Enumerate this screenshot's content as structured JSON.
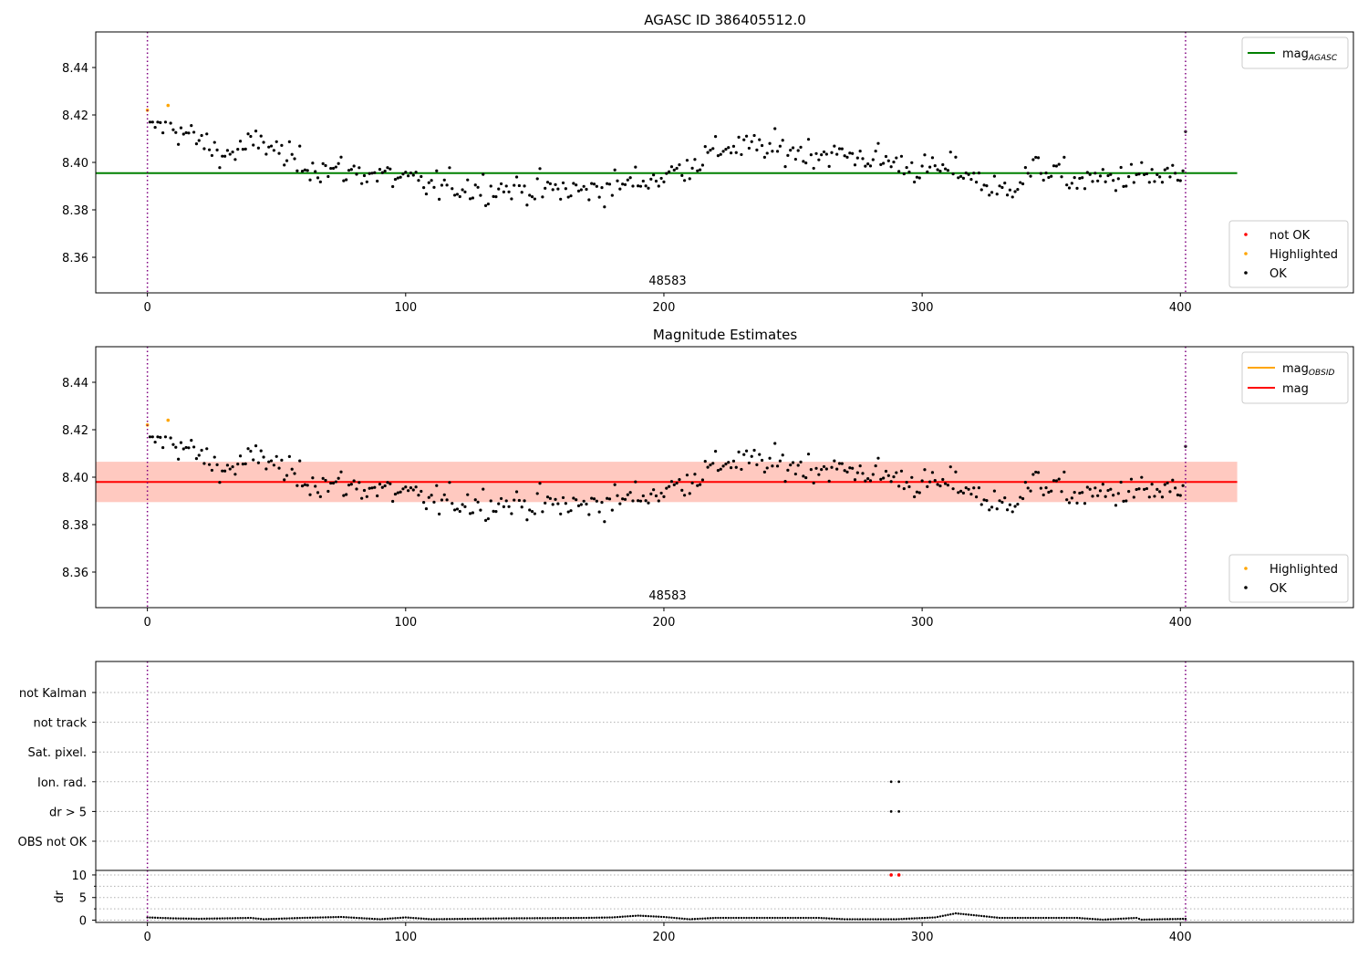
{
  "chart_data": [
    {
      "type": "scatter",
      "title": "AGASC ID 386405512.0",
      "xlim": [
        -20,
        467
      ],
      "ylim": [
        8.345,
        8.455
      ],
      "xticks": [
        0,
        100,
        200,
        300,
        400
      ],
      "yticks": [
        8.36,
        8.38,
        8.4,
        8.42,
        8.44
      ],
      "grid": false,
      "annotation": "48583",
      "obs_boundaries": [
        0,
        402
      ],
      "lines": [
        {
          "name": "mag_AGASC",
          "y": 8.3955,
          "x_range": [
            -20,
            422
          ],
          "color": "#008000"
        }
      ],
      "legend_lines": [
        {
          "label": "mag",
          "sub": "AGASC",
          "color": "#008000"
        }
      ],
      "legend_points": [
        {
          "label": "not OK",
          "color": "#ff0000"
        },
        {
          "label": "Highlighted",
          "color": "#ffa500"
        },
        {
          "label": "OK",
          "color": "#000000"
        }
      ],
      "highlighted": [
        [
          0,
          8.422
        ],
        [
          8,
          8.424
        ]
      ]
    },
    {
      "type": "scatter",
      "title": "Magnitude Estimates",
      "xlim": [
        -20,
        467
      ],
      "ylim": [
        8.345,
        8.455
      ],
      "xticks": [
        0,
        100,
        200,
        300,
        400
      ],
      "yticks": [
        8.36,
        8.38,
        8.4,
        8.42,
        8.44
      ],
      "grid": false,
      "annotation": "48583",
      "obs_boundaries": [
        0,
        402
      ],
      "lines": [
        {
          "name": "mag",
          "y": 8.398,
          "x_range": [
            -20,
            422
          ],
          "color": "#ff0000"
        }
      ],
      "bands": [
        {
          "y": [
            8.3895,
            8.4065
          ],
          "x_range": [
            -20,
            422
          ],
          "color": "#ffc0cb",
          "opacity": 0.5
        },
        {
          "y": [
            8.3895,
            8.4065
          ],
          "x_range": [
            -20,
            422
          ],
          "color": "#ffa07a",
          "opacity": 0.35
        }
      ],
      "legend_lines": [
        {
          "label": "mag",
          "sub": "OBSID",
          "color": "#ffa500"
        },
        {
          "label": "mag",
          "sub": "",
          "color": "#ff0000"
        }
      ],
      "legend_points": [
        {
          "label": "Highlighted",
          "color": "#ffa500"
        },
        {
          "label": "OK",
          "color": "#000000"
        }
      ],
      "highlighted": [
        [
          0,
          8.422
        ],
        [
          8,
          8.424
        ]
      ]
    },
    {
      "type": "scatter",
      "title": "",
      "xlim": [
        -20,
        467
      ],
      "categories": [
        "OBS not OK",
        "dr > 5",
        "Ion. rad.",
        "Sat. pixel.",
        "not track",
        "not Kalman"
      ],
      "flag_points": [
        {
          "category": "Ion. rad.",
          "x": [
            288,
            291
          ]
        },
        {
          "category": "dr > 5",
          "x": [
            288,
            291
          ]
        }
      ],
      "obs_boundaries": [
        0,
        402
      ],
      "grid": true
    },
    {
      "type": "scatter",
      "title": "",
      "ylabel": "dr",
      "xlim": [
        -20,
        467
      ],
      "ylim": [
        -0.5,
        11
      ],
      "xticks": [
        0,
        100,
        200,
        300,
        400
      ],
      "yticks": [
        0,
        5,
        10
      ],
      "grid": true,
      "obs_boundaries": [
        0,
        402
      ],
      "flagged": [
        [
          288,
          10
        ],
        [
          291,
          10
        ]
      ],
      "dr_profile": [
        [
          0,
          0.6
        ],
        [
          10,
          0.4
        ],
        [
          20,
          0.3
        ],
        [
          40,
          0.5
        ],
        [
          45,
          0.2
        ],
        [
          60,
          0.5
        ],
        [
          75,
          0.7
        ],
        [
          90,
          0.2
        ],
        [
          100,
          0.6
        ],
        [
          110,
          0.2
        ],
        [
          140,
          0.4
        ],
        [
          170,
          0.5
        ],
        [
          180,
          0.6
        ],
        [
          190,
          1.0
        ],
        [
          200,
          0.7
        ],
        [
          210,
          0.2
        ],
        [
          220,
          0.5
        ],
        [
          260,
          0.5
        ],
        [
          270,
          0.2
        ],
        [
          290,
          0.2
        ],
        [
          305,
          0.6
        ],
        [
          313,
          1.5
        ],
        [
          320,
          1.1
        ],
        [
          330,
          0.5
        ],
        [
          360,
          0.5
        ],
        [
          370,
          0.1
        ],
        [
          383,
          0.5
        ],
        [
          385,
          0.1
        ],
        [
          402,
          0.3
        ]
      ]
    }
  ]
}
